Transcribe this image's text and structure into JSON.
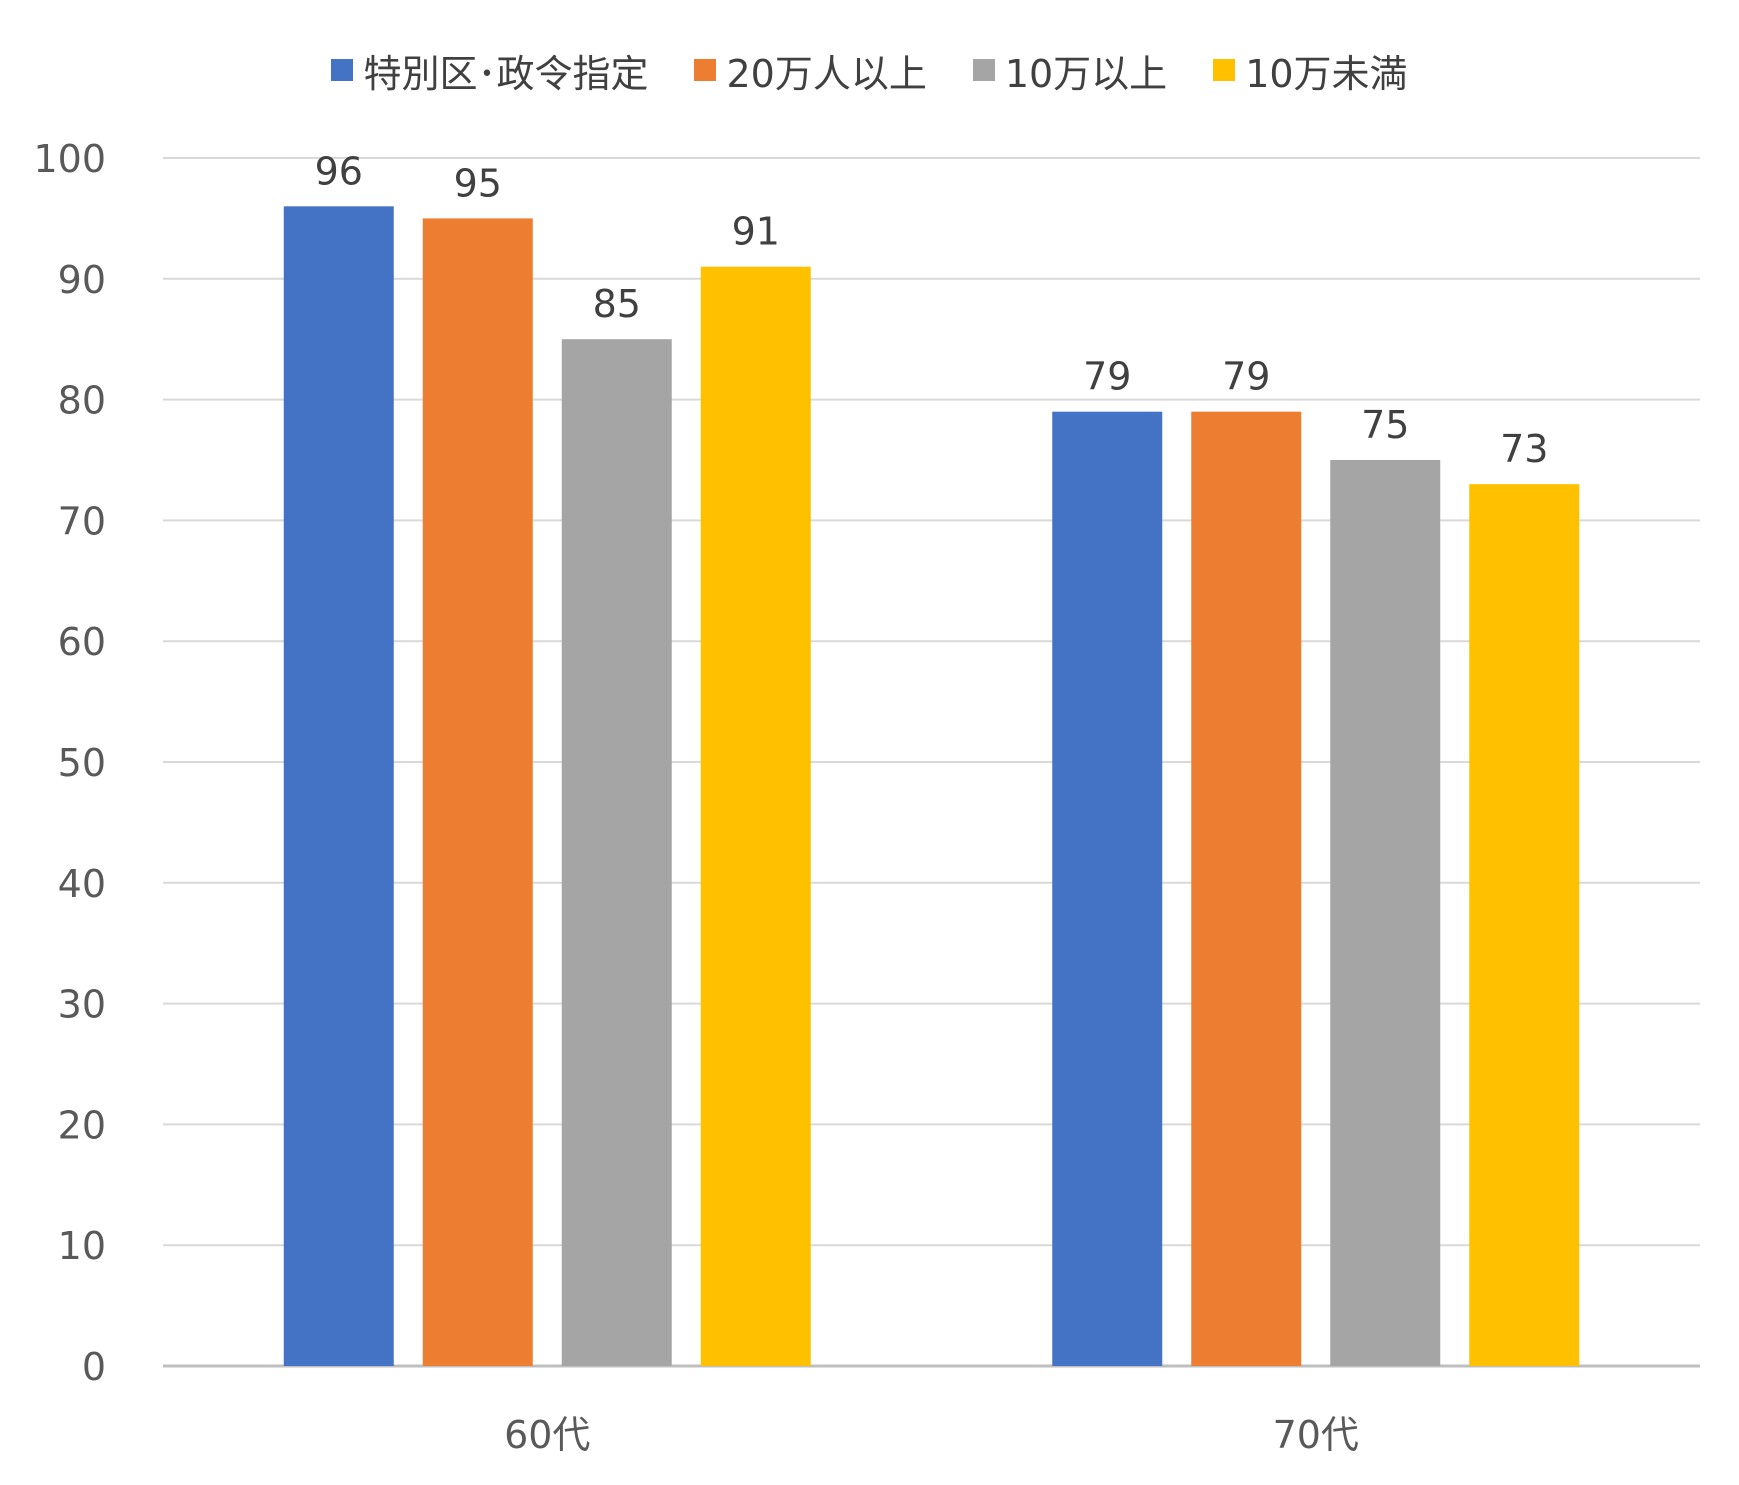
{
  "chart_data": {
    "type": "bar",
    "categories": [
      "60代",
      "70代"
    ],
    "series": [
      {
        "name": "特別区･政令指定",
        "color": "#4472C4",
        "values": [
          96,
          79
        ],
        "labels": [
          "96",
          "79"
        ]
      },
      {
        "name": "20万人以上",
        "color": "#ED7D31",
        "values": [
          95,
          79
        ],
        "labels": [
          "95",
          "79"
        ]
      },
      {
        "name": "10万以上",
        "color": "#A5A5A5",
        "values": [
          85,
          75
        ],
        "labels": [
          "85",
          "75"
        ]
      },
      {
        "name": "10万未満",
        "color": "#FFC000",
        "values": [
          91,
          73
        ],
        "labels": [
          "91",
          "73"
        ]
      }
    ],
    "ylim": [
      0,
      100
    ],
    "yticks": [
      "0",
      "10",
      "20",
      "30",
      "40",
      "50",
      "60",
      "70",
      "80",
      "90",
      "100"
    ],
    "grid": true,
    "legend_position": "top-center"
  }
}
